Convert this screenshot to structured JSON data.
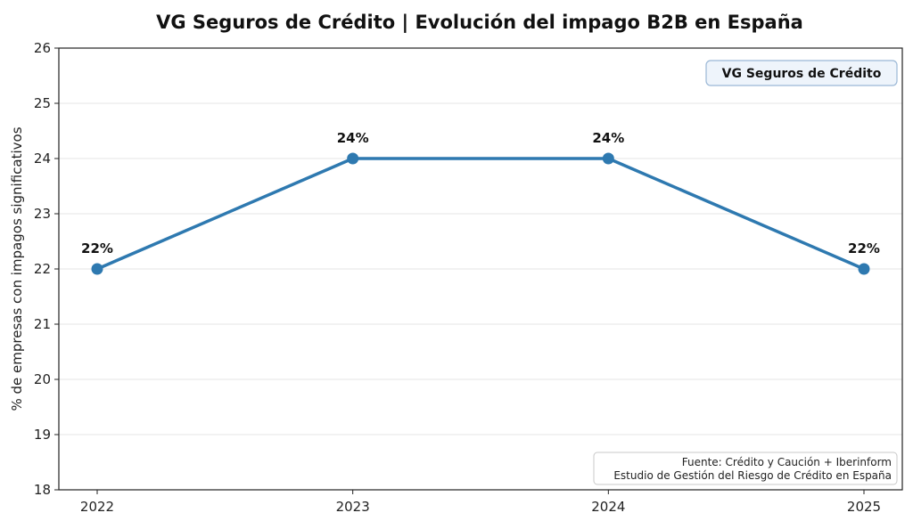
{
  "chart_data": {
    "type": "line",
    "title": "VG Seguros de Crédito | Evolución del impago B2B en España",
    "xlabel": "",
    "ylabel": "% de empresas con impagos significativos",
    "categories": [
      "2022",
      "2023",
      "2024",
      "2025"
    ],
    "series": [
      {
        "values": [
          22,
          24,
          24,
          22
        ],
        "data_labels": [
          "22%",
          "24%",
          "24%",
          "22%"
        ],
        "color": "#2e79b0",
        "marker": "circle"
      }
    ],
    "ylim": [
      18,
      26
    ],
    "y_ticks": [
      18,
      19,
      20,
      21,
      22,
      23,
      24,
      25,
      26
    ],
    "grid": "horizontal",
    "brand_badge": "VG Seguros de Crédito",
    "source_lines": [
      "Fuente: Crédito y Caución + Iberinform",
      "Estudio de Gestión del Riesgo de Crédito en España"
    ],
    "colors": {
      "line": "#2e79b0",
      "badge_fill": "#eef4fb",
      "badge_border": "#9bb8d6",
      "grid": "#e6e6e6",
      "axis": "#222222"
    }
  }
}
